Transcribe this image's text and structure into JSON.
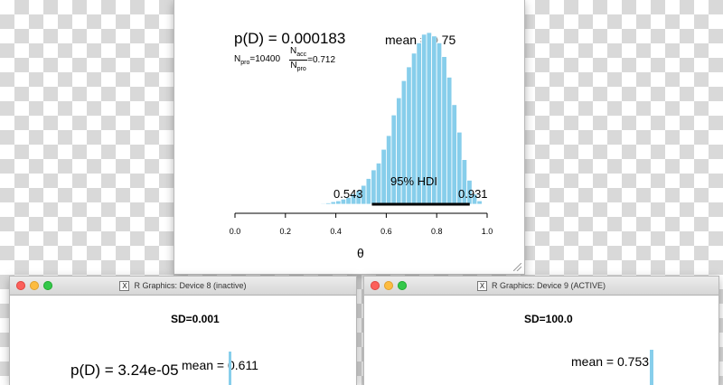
{
  "main_window": {
    "plot": {
      "pd_label": "p(D) = 0.000183",
      "npro_label": "N",
      "npro_sub": "pro",
      "npro_value": "=10400",
      "nacc_num": "N",
      "nacc_num_sub": "acc",
      "nacc_den": "N",
      "nacc_den_sub": "pro",
      "nacc_value": "=0.712",
      "mean_label": "mean = 0.75",
      "hdi_label": "95% HDI",
      "hdi_low": "0.543",
      "hdi_high": "0.931",
      "xlabel": "θ"
    }
  },
  "device8": {
    "title": "R Graphics: Device 8 (inactive)",
    "sd_label": "SD=0.001",
    "pd_label": "p(D) = 3.24e-05",
    "mean_label": "mean = 0.611"
  },
  "device9": {
    "title": "R Graphics: Device 9 (ACTIVE)",
    "sd_label": "SD=100.0",
    "mean_label": "mean = 0.753"
  },
  "icons": {
    "x11": "X"
  },
  "colors": {
    "bar_fill": "#87ceeb",
    "bar_stroke": "#ffffff",
    "hdi_line": "#000000"
  },
  "chart_data": {
    "type": "bar",
    "xlabel": "θ",
    "xlim": [
      0,
      1
    ],
    "xticks": [
      "0.0",
      "0.2",
      "0.4",
      "0.6",
      "0.8",
      "1.0"
    ],
    "bin_width": 0.02,
    "x": [
      0.35,
      0.37,
      0.39,
      0.41,
      0.43,
      0.45,
      0.47,
      0.49,
      0.51,
      0.53,
      0.55,
      0.57,
      0.59,
      0.61,
      0.63,
      0.65,
      0.67,
      0.69,
      0.71,
      0.73,
      0.75,
      0.77,
      0.79,
      0.81,
      0.83,
      0.85,
      0.87,
      0.89,
      0.91,
      0.93,
      0.95,
      0.97
    ],
    "values": [
      0.5,
      0.8,
      1.5,
      2,
      3,
      4,
      6,
      8,
      11,
      15,
      20,
      24,
      32,
      40,
      52,
      62,
      72,
      80,
      88,
      94,
      99,
      100,
      98,
      94,
      86,
      74,
      58,
      42,
      26,
      14,
      6,
      2
    ],
    "values_note": "relative heights, max=100",
    "mean": 0.75,
    "hdi": {
      "label": "95% HDI",
      "low": 0.543,
      "high": 0.931
    }
  }
}
